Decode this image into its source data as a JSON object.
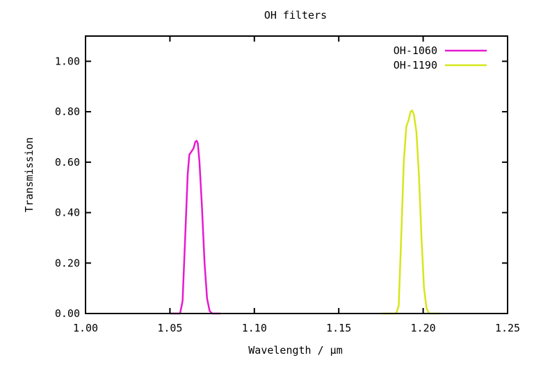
{
  "chart_data": {
    "type": "line",
    "title": "OH filters",
    "xlabel": "Wavelength / μm",
    "ylabel": "Transmission",
    "xlim": [
      1.0,
      1.25
    ],
    "ylim": [
      0.0,
      1.1
    ],
    "xticks": [
      "1.00",
      "1.05",
      "1.10",
      "1.15",
      "1.20",
      "1.25"
    ],
    "yticks": [
      "0.00",
      "0.20",
      "0.40",
      "0.60",
      "0.80",
      "1.00"
    ],
    "grid": false,
    "legend": "top-right",
    "series": [
      {
        "name": "OH-1060",
        "color": "#e619d1",
        "x": [
          1.05,
          1.056,
          1.0575,
          1.059,
          1.0605,
          1.0615,
          1.0625,
          1.064,
          1.065,
          1.0658,
          1.0665,
          1.0675,
          1.069,
          1.0705,
          1.072,
          1.0735,
          1.075,
          1.08
        ],
        "y": [
          0.0,
          0.0,
          0.05,
          0.3,
          0.55,
          0.63,
          0.64,
          0.655,
          0.68,
          0.685,
          0.675,
          0.6,
          0.42,
          0.2,
          0.06,
          0.01,
          0.0,
          0.0
        ]
      },
      {
        "name": "OH-1190",
        "color": "#d6e619",
        "x": [
          1.175,
          1.184,
          1.1855,
          1.187,
          1.1885,
          1.19,
          1.1915,
          1.1925,
          1.1935,
          1.1945,
          1.196,
          1.1975,
          1.199,
          1.2005,
          1.202,
          1.2035,
          1.21
        ],
        "y": [
          0.0,
          0.0,
          0.03,
          0.3,
          0.6,
          0.74,
          0.77,
          0.8,
          0.805,
          0.79,
          0.72,
          0.55,
          0.3,
          0.1,
          0.02,
          0.0,
          0.0
        ]
      }
    ]
  }
}
